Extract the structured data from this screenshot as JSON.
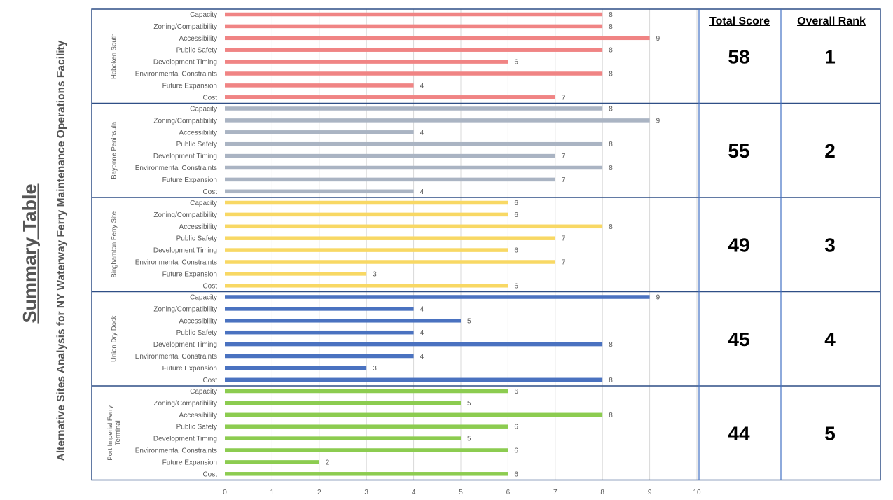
{
  "title": "Summary Table",
  "subtitle": "Alternative Sites Analysis for NY Waterway Ferry Maintenance Operations Facility",
  "headers": {
    "total_score": "Total Score",
    "overall_rank": "Overall Rank"
  },
  "chart_data": {
    "type": "bar",
    "orientation": "horizontal",
    "categories": [
      "Capacity",
      "Zoning/Compatibility",
      "Accessibility",
      "Public Safety",
      "Development Timing",
      "Environmental Constraints",
      "Future Expansion",
      "Cost"
    ],
    "xlim": [
      0,
      10
    ],
    "x_ticks": [
      "0",
      "1",
      "2",
      "3",
      "4",
      "5",
      "6",
      "7",
      "8",
      "9",
      "10"
    ],
    "grid": "vertical",
    "series": [
      {
        "name": "Hoboken South",
        "label_lines": [
          "Hoboken South"
        ],
        "color": "#f08484",
        "values": [
          8,
          8,
          9,
          8,
          6,
          8,
          4,
          7
        ],
        "total_score": "58",
        "overall_rank": "1"
      },
      {
        "name": "Bayonne Peninsula",
        "label_lines": [
          "Bayonne Peninsula"
        ],
        "color": "#aab4c3",
        "values": [
          8,
          9,
          4,
          8,
          7,
          8,
          7,
          4
        ],
        "total_score": "55",
        "overall_rank": "2"
      },
      {
        "name": "Binghamton Ferry Site",
        "label_lines": [
          "Binghamton Ferry Site"
        ],
        "color": "#f8d864",
        "values": [
          6,
          6,
          8,
          7,
          6,
          7,
          3,
          6
        ],
        "total_score": "49",
        "overall_rank": "3"
      },
      {
        "name": "Union Dry Dock",
        "label_lines": [
          "Union Dry Dock"
        ],
        "color": "#4a72c0",
        "values": [
          9,
          4,
          5,
          4,
          8,
          4,
          3,
          8
        ],
        "total_score": "45",
        "overall_rank": "4"
      },
      {
        "name": "Port Imperial Ferry Terminal",
        "label_lines": [
          "Port Imperial Ferry",
          "Terminal"
        ],
        "color": "#8ccc50",
        "values": [
          6,
          5,
          8,
          6,
          5,
          6,
          2,
          6
        ],
        "total_score": "44",
        "overall_rank": "5"
      }
    ]
  }
}
